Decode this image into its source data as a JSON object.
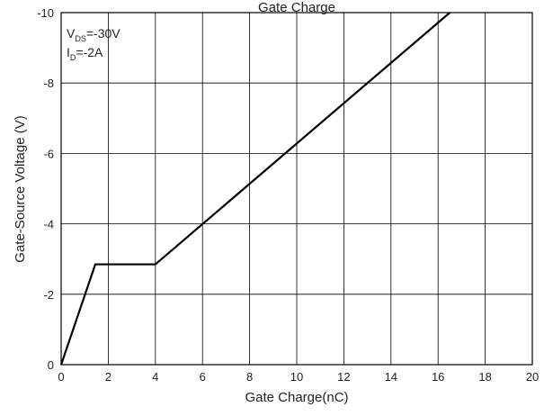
{
  "chart_data": {
    "type": "line",
    "title": "Gate Charge",
    "xlabel": "Gate Charge(nC)",
    "ylabel": "Gate-Source Voltage (V)",
    "xlim": [
      0,
      20
    ],
    "ylim": [
      0,
      -10
    ],
    "x_ticks": [
      "0",
      "2",
      "4",
      "6",
      "8",
      "10",
      "12",
      "14",
      "16",
      "18",
      "20"
    ],
    "y_ticks": [
      "0",
      "-2",
      "-4",
      "-6",
      "-8",
      "-10"
    ],
    "grid": true,
    "annotations": {
      "vds": {
        "main": "V",
        "sub": "DS",
        "rest": "=-30V"
      },
      "id": {
        "main": "I",
        "sub": "D",
        "rest": "=-2A"
      }
    },
    "series": [
      {
        "x": [
          0,
          1.45,
          4.0,
          16.5
        ],
        "y": [
          0,
          -2.85,
          -2.85,
          -10.0
        ]
      }
    ],
    "colors": {
      "line": "#000000",
      "grid": "#000000",
      "axis": "#000000"
    }
  }
}
